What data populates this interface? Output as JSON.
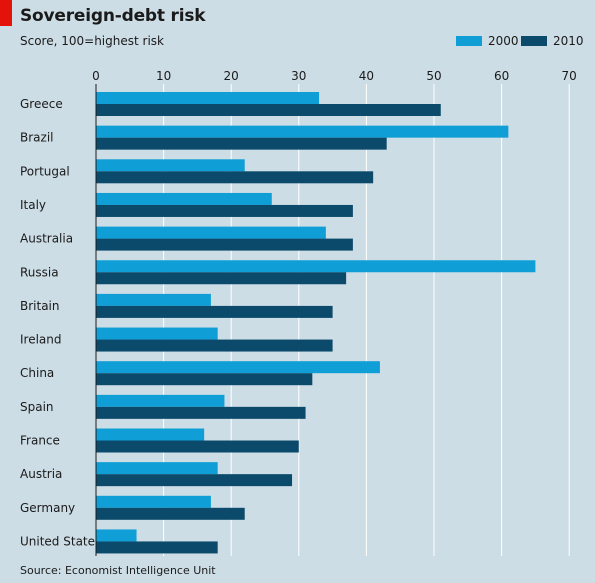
{
  "header": {
    "title": "Sovereign-debt risk",
    "subtitle": "Score, 100=highest risk"
  },
  "legend": {
    "items": [
      {
        "label": "2000",
        "color": "#0f9ed5"
      },
      {
        "label": "2010",
        "color": "#0c4a6b"
      }
    ]
  },
  "footer": {
    "source": "Source: Economist Intelligence Unit"
  },
  "chart_data": {
    "type": "bar",
    "orientation": "horizontal",
    "title": "Sovereign-debt risk",
    "subtitle": "Score, 100=highest risk",
    "categories": [
      "Greece",
      "Brazil",
      "Portugal",
      "Italy",
      "Australia",
      "Russia",
      "Britain",
      "Ireland",
      "China",
      "Spain",
      "France",
      "Austria",
      "Germany",
      "United States"
    ],
    "series": [
      {
        "name": "2000",
        "color": "#0f9ed5",
        "values": [
          33,
          61,
          22,
          26,
          34,
          65,
          17,
          18,
          42,
          19,
          16,
          18,
          17,
          6
        ]
      },
      {
        "name": "2010",
        "color": "#0c4a6b",
        "values": [
          51,
          43,
          41,
          38,
          38,
          37,
          35,
          35,
          32,
          31,
          30,
          29,
          22,
          18
        ]
      }
    ],
    "xlim": [
      0,
      70
    ],
    "xticks": [
      0,
      10,
      20,
      30,
      40,
      50,
      60,
      70
    ],
    "grid": true,
    "legend_position": "top-right"
  }
}
